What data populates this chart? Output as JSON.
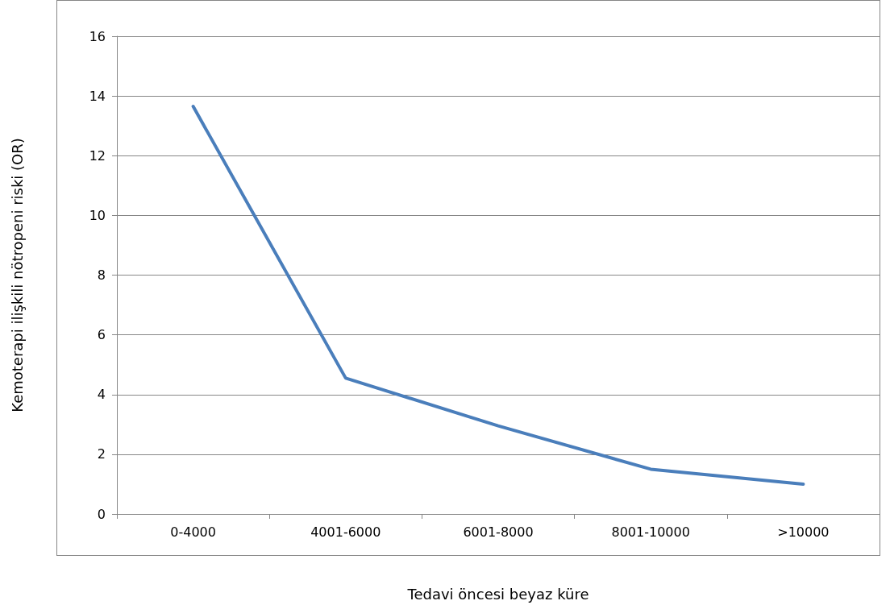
{
  "chart_data": {
    "type": "line",
    "xlabel": "Tedavi öncesi beyaz küre",
    "ylabel": "Kemoterapi ilişkili nötropeni riski (OR)",
    "categories": [
      "0-4000",
      "4001-6000",
      "6001-8000",
      "8001-10000",
      ">10000"
    ],
    "series": [
      {
        "color": "#4a7ebb",
        "values": [
          13.65,
          4.55,
          2.95,
          1.5,
          1.0
        ]
      }
    ],
    "ylim": [
      0,
      16
    ],
    "yticks": [
      0,
      2,
      4,
      6,
      8,
      10,
      12,
      14,
      16
    ],
    "grid": "y",
    "marker": "none",
    "line_style": "solid"
  }
}
